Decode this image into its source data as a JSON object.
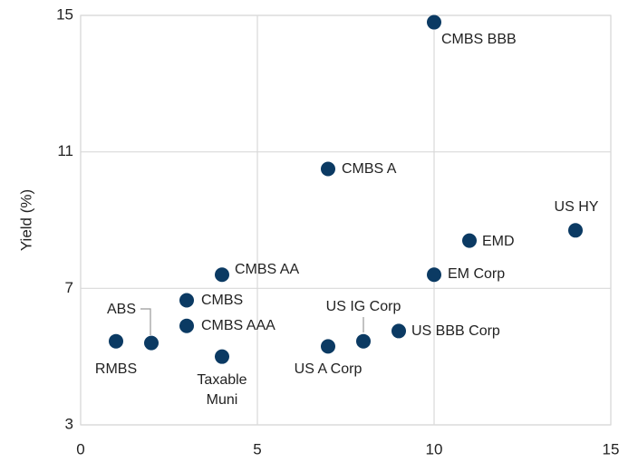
{
  "chart_data": {
    "type": "scatter",
    "y_label": "Yield (%)",
    "series": [
      {
        "color": "#0b3a63",
        "labels": [
          "RMBS",
          "ABS",
          "CMBS",
          "CMBS AAA",
          "CMBS AA",
          "Taxable Muni",
          "CMBS A",
          "US A Corp",
          "US IG Corp",
          "US BBB Corp",
          "CMBS BBB",
          "EM Corp",
          "EMD",
          "US HY"
        ],
        "x": [
          1,
          2,
          3,
          3,
          4,
          4,
          7,
          7,
          8,
          9,
          10,
          10,
          11,
          14
        ],
        "values": [
          5.45,
          5.4,
          6.65,
          5.9,
          7.4,
          5.0,
          10.5,
          5.3,
          5.45,
          5.75,
          14.8,
          7.4,
          8.4,
          8.7
        ]
      }
    ],
    "xlim": [
      0,
      15
    ],
    "xticks": [
      0,
      5,
      10,
      15
    ],
    "ylim": [
      3,
      15
    ],
    "yticks": [
      3,
      7,
      11,
      15
    ],
    "grid": true
  }
}
